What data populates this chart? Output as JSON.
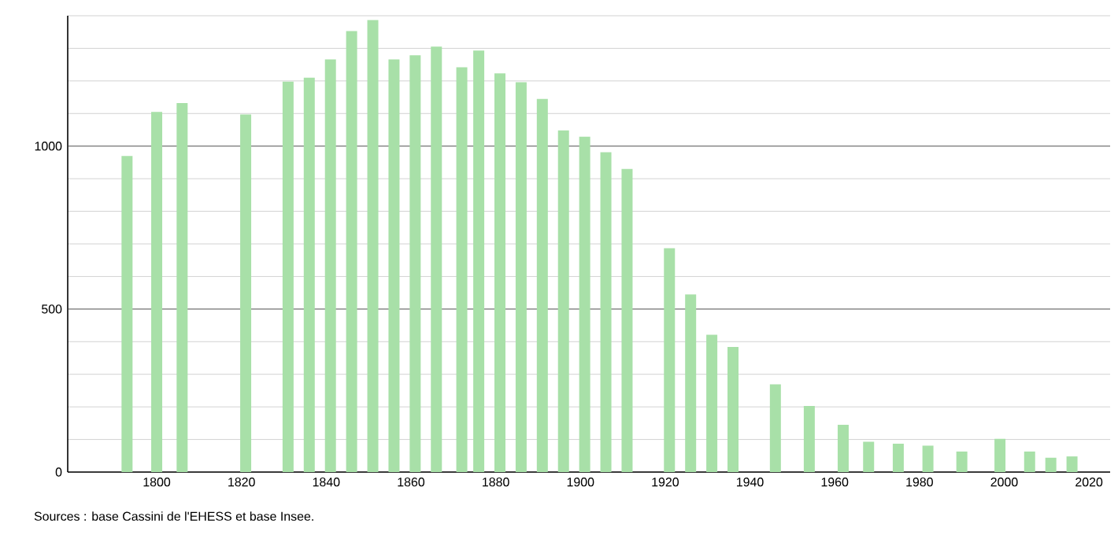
{
  "chart_data": {
    "type": "bar",
    "x": [
      1793,
      1800,
      1806,
      1821,
      1831,
      1836,
      1841,
      1846,
      1851,
      1856,
      1861,
      1866,
      1872,
      1876,
      1881,
      1886,
      1891,
      1896,
      1901,
      1906,
      1911,
      1921,
      1926,
      1931,
      1936,
      1946,
      1954,
      1962,
      1968,
      1975,
      1982,
      1990,
      1999,
      2006,
      2011,
      2016
    ],
    "values": [
      970,
      1105,
      1132,
      1097,
      1198,
      1210,
      1266,
      1353,
      1387,
      1266,
      1279,
      1305,
      1242,
      1293,
      1223,
      1196,
      1145,
      1048,
      1029,
      981,
      930,
      687,
      545,
      421,
      384,
      269,
      203,
      145,
      93,
      87,
      81,
      63,
      102,
      63,
      44,
      48
    ],
    "color": "#a8e0a8",
    "xlim": [
      1779,
      2025
    ],
    "xticks": [
      1800,
      1820,
      1840,
      1860,
      1880,
      1900,
      1920,
      1940,
      1960,
      1980,
      2000,
      2020
    ],
    "ylim": [
      0,
      1400
    ],
    "yticks": [
      0,
      {
        "value": 100,
        "label": null
      },
      {
        "value": 200,
        "label": null
      },
      {
        "value": 300,
        "label": null
      },
      {
        "value": 400,
        "label": null
      },
      500,
      {
        "value": 600,
        "label": null
      },
      {
        "value": 700,
        "label": null
      },
      {
        "value": 800,
        "label": null
      },
      {
        "value": 900,
        "label": null
      },
      1000,
      {
        "value": 1100,
        "label": null
      },
      {
        "value": 1200,
        "label": null
      },
      {
        "value": 1300,
        "label": null
      },
      {
        "value": 1400,
        "label": null
      }
    ],
    "grid": "y",
    "annotations": [
      "Sources : base Cassini de l'EHESS et base Insee."
    ]
  }
}
